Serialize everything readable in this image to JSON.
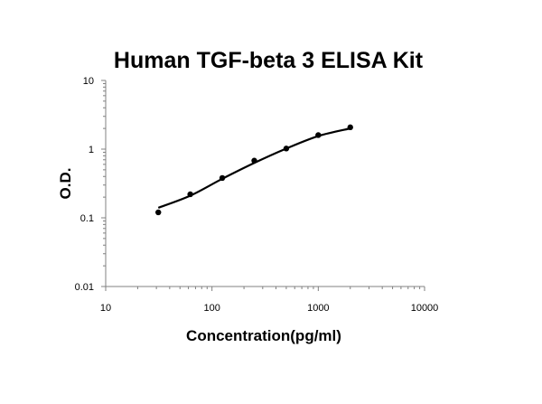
{
  "chart_data": {
    "type": "scatter",
    "title": "Human TGF-beta 3 ELISA Kit",
    "xlabel": "Concentration(pg/ml)",
    "ylabel": "O.D.",
    "x_scale": "log",
    "y_scale": "log",
    "xlim": [
      10,
      10000
    ],
    "ylim": [
      0.01,
      10
    ],
    "x_ticks": [
      "10",
      "100",
      "1000",
      "10000"
    ],
    "y_ticks": [
      "0.01",
      "0.1",
      "1",
      "10"
    ],
    "grid": false,
    "legend": "none",
    "series": [
      {
        "points": [
          {
            "x": 31.25,
            "y": 0.12
          },
          {
            "x": 62.5,
            "y": 0.22
          },
          {
            "x": 125,
            "y": 0.38
          },
          {
            "x": 250,
            "y": 0.68
          },
          {
            "x": 500,
            "y": 1.02
          },
          {
            "x": 1000,
            "y": 1.6
          },
          {
            "x": 2000,
            "y": 2.08
          }
        ],
        "fit_curve": [
          {
            "x": 31.25,
            "y": 0.14
          },
          {
            "x": 62.5,
            "y": 0.21
          },
          {
            "x": 125,
            "y": 0.37
          },
          {
            "x": 250,
            "y": 0.63
          },
          {
            "x": 500,
            "y": 1.02
          },
          {
            "x": 1000,
            "y": 1.55
          },
          {
            "x": 2000,
            "y": 2.0
          }
        ],
        "color": "#000000"
      }
    ]
  }
}
